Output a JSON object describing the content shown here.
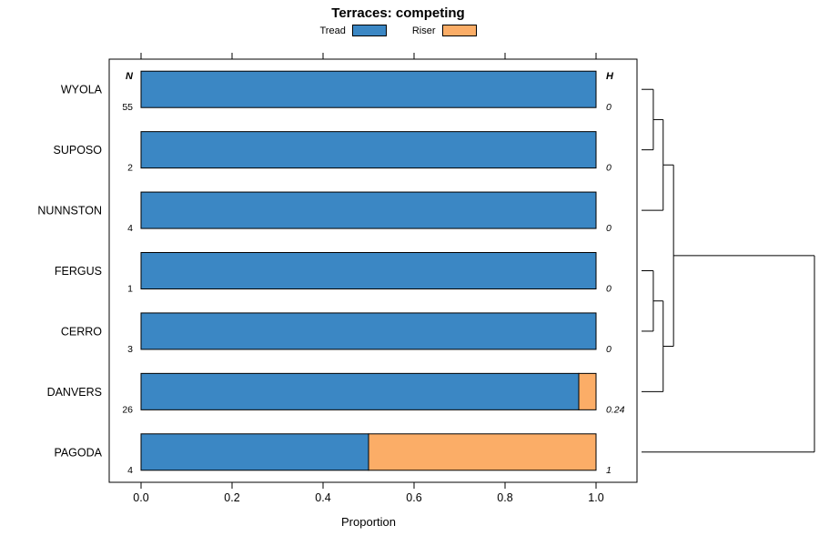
{
  "title": "Terraces: competing",
  "legend": {
    "items": [
      {
        "label": "Tread",
        "color": "#3b87c4"
      },
      {
        "label": "Riser",
        "color": "#fbad67"
      }
    ]
  },
  "chart_data": {
    "type": "bar",
    "orientation": "horizontal-stacked",
    "title": "Terraces: competing",
    "categories": [
      "WYOLA",
      "SUPOSO",
      "NUNNSTON",
      "FERGUS",
      "CERRO",
      "DANVERS",
      "PAGODA"
    ],
    "series": [
      {
        "name": "Tread",
        "color": "#3b87c4",
        "values": [
          1,
          1,
          1,
          1,
          1,
          0.962,
          0.5
        ]
      },
      {
        "name": "Riser",
        "color": "#fbad67",
        "values": [
          0,
          0,
          0,
          0,
          0,
          0.038,
          0.5
        ]
      }
    ],
    "n_header": "N",
    "n_values": [
      "55",
      "2",
      "4",
      "1",
      "3",
      "26",
      "4"
    ],
    "h_header": "H",
    "h_values": [
      "0",
      "0",
      "0",
      "0",
      "0",
      "0.24",
      "1"
    ],
    "xlabel": "Proportion",
    "xlim": [
      0,
      1
    ],
    "xticks": [
      "0.0",
      "0.2",
      "0.4",
      "0.6",
      "0.8",
      "1.0"
    ],
    "legend_position": "top",
    "grid": false,
    "bar_border_color": "#000000",
    "dendrogram": {
      "note": "x = merge height fraction 0..1, y = row index 0..6 top to bottom",
      "segments": [
        [
          0,
          0,
          0.068,
          0
        ],
        [
          0,
          1,
          0.068,
          1
        ],
        [
          0.068,
          0,
          0.068,
          1
        ],
        [
          0.068,
          0.5,
          0.125,
          0.5
        ],
        [
          0,
          2,
          0.125,
          2
        ],
        [
          0.125,
          0.5,
          0.125,
          2
        ],
        [
          0,
          3,
          0.068,
          3
        ],
        [
          0,
          4,
          0.068,
          4
        ],
        [
          0.068,
          3,
          0.068,
          4
        ],
        [
          0.068,
          3.5,
          0.125,
          3.5
        ],
        [
          0,
          5,
          0.125,
          5
        ],
        [
          0.125,
          3.5,
          0.125,
          5
        ],
        [
          0.125,
          1.25,
          0.185,
          1.25
        ],
        [
          0.125,
          4.25,
          0.185,
          4.25
        ],
        [
          0.185,
          1.25,
          0.185,
          4.25
        ],
        [
          0.185,
          2.75,
          1,
          2.75
        ],
        [
          0,
          6,
          1,
          6
        ],
        [
          1,
          2.75,
          1,
          6
        ]
      ]
    }
  }
}
